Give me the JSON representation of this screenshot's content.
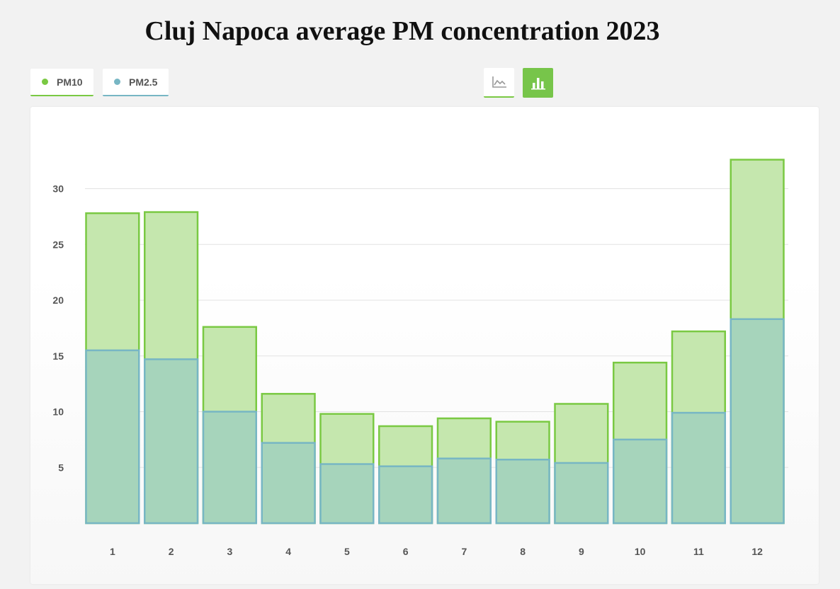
{
  "chart_data": {
    "type": "bar",
    "title": "Cluj Napoca average PM concentration 2023",
    "xlabel": "",
    "ylabel": "",
    "categories": [
      "1",
      "2",
      "3",
      "4",
      "5",
      "6",
      "7",
      "8",
      "9",
      "10",
      "11",
      "12"
    ],
    "series": [
      {
        "name": "PM10",
        "color": "#7ac943",
        "fill": "#c5e7ae",
        "values": [
          27.8,
          27.9,
          17.6,
          11.6,
          9.8,
          8.7,
          9.4,
          9.1,
          10.7,
          14.4,
          17.2,
          32.6
        ]
      },
      {
        "name": "PM2.5",
        "color": "#77b6c4",
        "fill": "#a6d4bb",
        "values": [
          15.5,
          14.7,
          10.0,
          7.2,
          5.3,
          5.1,
          5.8,
          5.7,
          5.4,
          7.5,
          9.9,
          18.3
        ]
      }
    ],
    "ylim": [
      0,
      33
    ],
    "yticks": [
      5,
      10,
      15,
      20,
      25,
      30
    ],
    "grid": true
  },
  "legend": {
    "pm10_label": "PM10",
    "pm25_label": "PM2.5"
  },
  "toggle": {
    "line_icon": "line-chart-icon",
    "bar_icon": "bar-chart-icon",
    "active": "bar"
  }
}
